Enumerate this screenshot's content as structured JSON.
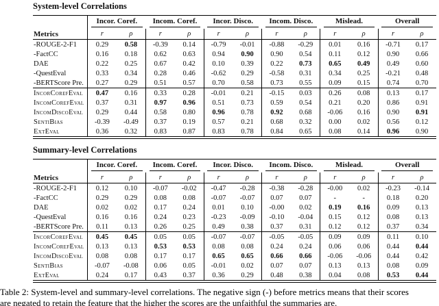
{
  "caption": {
    "line1": "Table 2: System-level and summary-level correlations. The negative sign (-) before metrics means that their scores",
    "line2": "are negated to retain the feature that the higher the scores are the unfaithful the summaries are."
  },
  "tables": [
    {
      "title": "System-level Correlations",
      "metrics_header": "Metrics",
      "subheaders": [
        "r",
        "ρ"
      ],
      "col_groups": [
        "Incor. Coref.",
        "Incom. Coref.",
        "Incor. Disco.",
        "Incom. Disco.",
        "Mislead.",
        "Overall"
      ],
      "row_groups": [
        {
          "rows": [
            {
              "metric": "-ROUGE-2-F1",
              "smallcaps": false,
              "values": [
                "0.29",
                "0.58",
                "-0.39",
                "0.14",
                "-0.79",
                "-0.01",
                "-0.88",
                "-0.29",
                "0.01",
                "0.16",
                "-0.71",
                "0.17"
              ],
              "bold": [
                1
              ]
            },
            {
              "metric": "-FactCC",
              "smallcaps": false,
              "values": [
                "0.16",
                "0.18",
                "0.62",
                "0.63",
                "0.94",
                "0.90",
                "0.90",
                "0.54",
                "0.11",
                "0.12",
                "0.90",
                "0.66"
              ],
              "bold": [
                5
              ]
            },
            {
              "metric": "DAE",
              "smallcaps": false,
              "values": [
                "0.22",
                "0.25",
                "0.67",
                "0.42",
                "0.10",
                "0.39",
                "0.22",
                "0.73",
                "0.65",
                "0.49",
                "0.49",
                "0.60"
              ],
              "bold": [
                7,
                8,
                9
              ]
            },
            {
              "metric": "-QuestEval",
              "smallcaps": false,
              "values": [
                "0.33",
                "0.34",
                "0.28",
                "0.46",
                "-0.62",
                "0.29",
                "-0.58",
                "0.31",
                "0.34",
                "0.25",
                "-0.21",
                "0.48"
              ],
              "bold": []
            },
            {
              "metric": "-BERTScore Pre.",
              "smallcaps": false,
              "values": [
                "0.27",
                "0.29",
                "0.51",
                "0.57",
                "0.70",
                "0.58",
                "0.73",
                "0.55",
                "0.09",
                "0.15",
                "0.74",
                "0.70"
              ],
              "bold": []
            }
          ]
        },
        {
          "rows": [
            {
              "metric": "IncorCorefEval",
              "smallcaps": true,
              "values": [
                "0.47",
                "0.16",
                "0.33",
                "0.28",
                "-0.01",
                "0.21",
                "-0.15",
                "0.03",
                "0.26",
                "0.08",
                "0.13",
                "0.17"
              ],
              "bold": [
                0
              ]
            },
            {
              "metric": "IncomCorefEval",
              "smallcaps": true,
              "values": [
                "0.37",
                "0.31",
                "0.97",
                "0.96",
                "0.51",
                "0.73",
                "0.59",
                "0.54",
                "0.21",
                "0.20",
                "0.86",
                "0.91"
              ],
              "bold": [
                2,
                3
              ]
            },
            {
              "metric": "IncomDiscoEval",
              "smallcaps": true,
              "values": [
                "0.29",
                "0.44",
                "0.58",
                "0.80",
                "0.96",
                "0.78",
                "0.92",
                "0.68",
                "-0.06",
                "0.16",
                "0.90",
                "0.91"
              ],
              "bold": [
                4,
                6,
                11
              ]
            },
            {
              "metric": "SentiBias",
              "smallcaps": true,
              "values": [
                "-0.39",
                "-0.49",
                "0.37",
                "0.19",
                "0.57",
                "0.21",
                "0.68",
                "0.32",
                "0.00",
                "0.02",
                "0.56",
                "0.12"
              ],
              "bold": []
            },
            {
              "metric": "ExtEval",
              "smallcaps": true,
              "values": [
                "0.36",
                "0.32",
                "0.83",
                "0.87",
                "0.83",
                "0.78",
                "0.84",
                "0.65",
                "0.08",
                "0.14",
                "0.96",
                "0.90"
              ],
              "bold": [
                10
              ]
            }
          ]
        }
      ]
    },
    {
      "title": "Summary-level Correlations",
      "metrics_header": "Metrics",
      "subheaders": [
        "r",
        "ρ"
      ],
      "col_groups": [
        "Incor. Coref.",
        "Incom. Coref.",
        "Incor. Disco.",
        "Incom. Disco.",
        "Mislead.",
        "Overall"
      ],
      "row_groups": [
        {
          "rows": [
            {
              "metric": "-ROUGE-2-F1",
              "smallcaps": false,
              "values": [
                "0.12",
                "0.10",
                "-0.07",
                "-0.02",
                "-0.47",
                "-0.28",
                "-0.38",
                "-0.28",
                "-0.00",
                "0.02",
                "-0.23",
                "-0.14"
              ],
              "bold": []
            },
            {
              "metric": "-FactCC",
              "smallcaps": false,
              "values": [
                "0.29",
                "0.29",
                "0.08",
                "0.08",
                "-0.07",
                "-0.07",
                "0.07",
                "0.07",
                "-",
                "-",
                "0.18",
                "0.20"
              ],
              "bold": []
            },
            {
              "metric": "DAE",
              "smallcaps": false,
              "values": [
                "0.02",
                "0.02",
                "0.17",
                "0.24",
                "0.01",
                "0.10",
                "-0.00",
                "0.02",
                "0.19",
                "0.16",
                "0.09",
                "0.13"
              ],
              "bold": [
                8,
                9
              ]
            },
            {
              "metric": "-QuestEval",
              "smallcaps": false,
              "values": [
                "0.16",
                "0.16",
                "0.24",
                "0.23",
                "-0.23",
                "-0.09",
                "-0.10",
                "-0.04",
                "0.15",
                "0.12",
                "0.08",
                "0.13"
              ],
              "bold": []
            },
            {
              "metric": "-BERTScore Pre.",
              "smallcaps": false,
              "values": [
                "0.11",
                "0.13",
                "0.26",
                "0.25",
                "0.49",
                "0.38",
                "0.37",
                "0.31",
                "0.12",
                "0.12",
                "0.37",
                "0.34"
              ],
              "bold": []
            }
          ]
        },
        {
          "rows": [
            {
              "metric": "IncorCorefEval",
              "smallcaps": true,
              "values": [
                "0.45",
                "0.45",
                "0.05",
                "0.05",
                "-0.07",
                "-0.07",
                "-0.05",
                "-0.05",
                "0.09",
                "0.09",
                "0.11",
                "0.10"
              ],
              "bold": [
                0,
                1
              ]
            },
            {
              "metric": "IncomCorefEval",
              "smallcaps": true,
              "values": [
                "0.13",
                "0.13",
                "0.53",
                "0.53",
                "0.08",
                "0.08",
                "0.24",
                "0.24",
                "0.06",
                "0.06",
                "0.44",
                "0.44"
              ],
              "bold": [
                2,
                3,
                11
              ]
            },
            {
              "metric": "IncomDiscoEval",
              "smallcaps": true,
              "values": [
                "0.08",
                "0.08",
                "0.17",
                "0.17",
                "0.65",
                "0.65",
                "0.66",
                "0.66",
                "-0.06",
                "-0.06",
                "0.44",
                "0.42"
              ],
              "bold": [
                4,
                5,
                6,
                7
              ]
            },
            {
              "metric": "SentiBias",
              "smallcaps": true,
              "values": [
                "-0.07",
                "-0.08",
                "0.06",
                "0.05",
                "-0.01",
                "0.02",
                "0.07",
                "0.07",
                "0.13",
                "0.13",
                "0.08",
                "0.09"
              ],
              "bold": []
            },
            {
              "metric": "ExtEval",
              "smallcaps": true,
              "values": [
                "0.24",
                "0.17",
                "0.43",
                "0.37",
                "0.36",
                "0.29",
                "0.48",
                "0.38",
                "0.04",
                "0.08",
                "0.53",
                "0.44"
              ],
              "bold": [
                10,
                11
              ]
            }
          ]
        }
      ]
    }
  ]
}
